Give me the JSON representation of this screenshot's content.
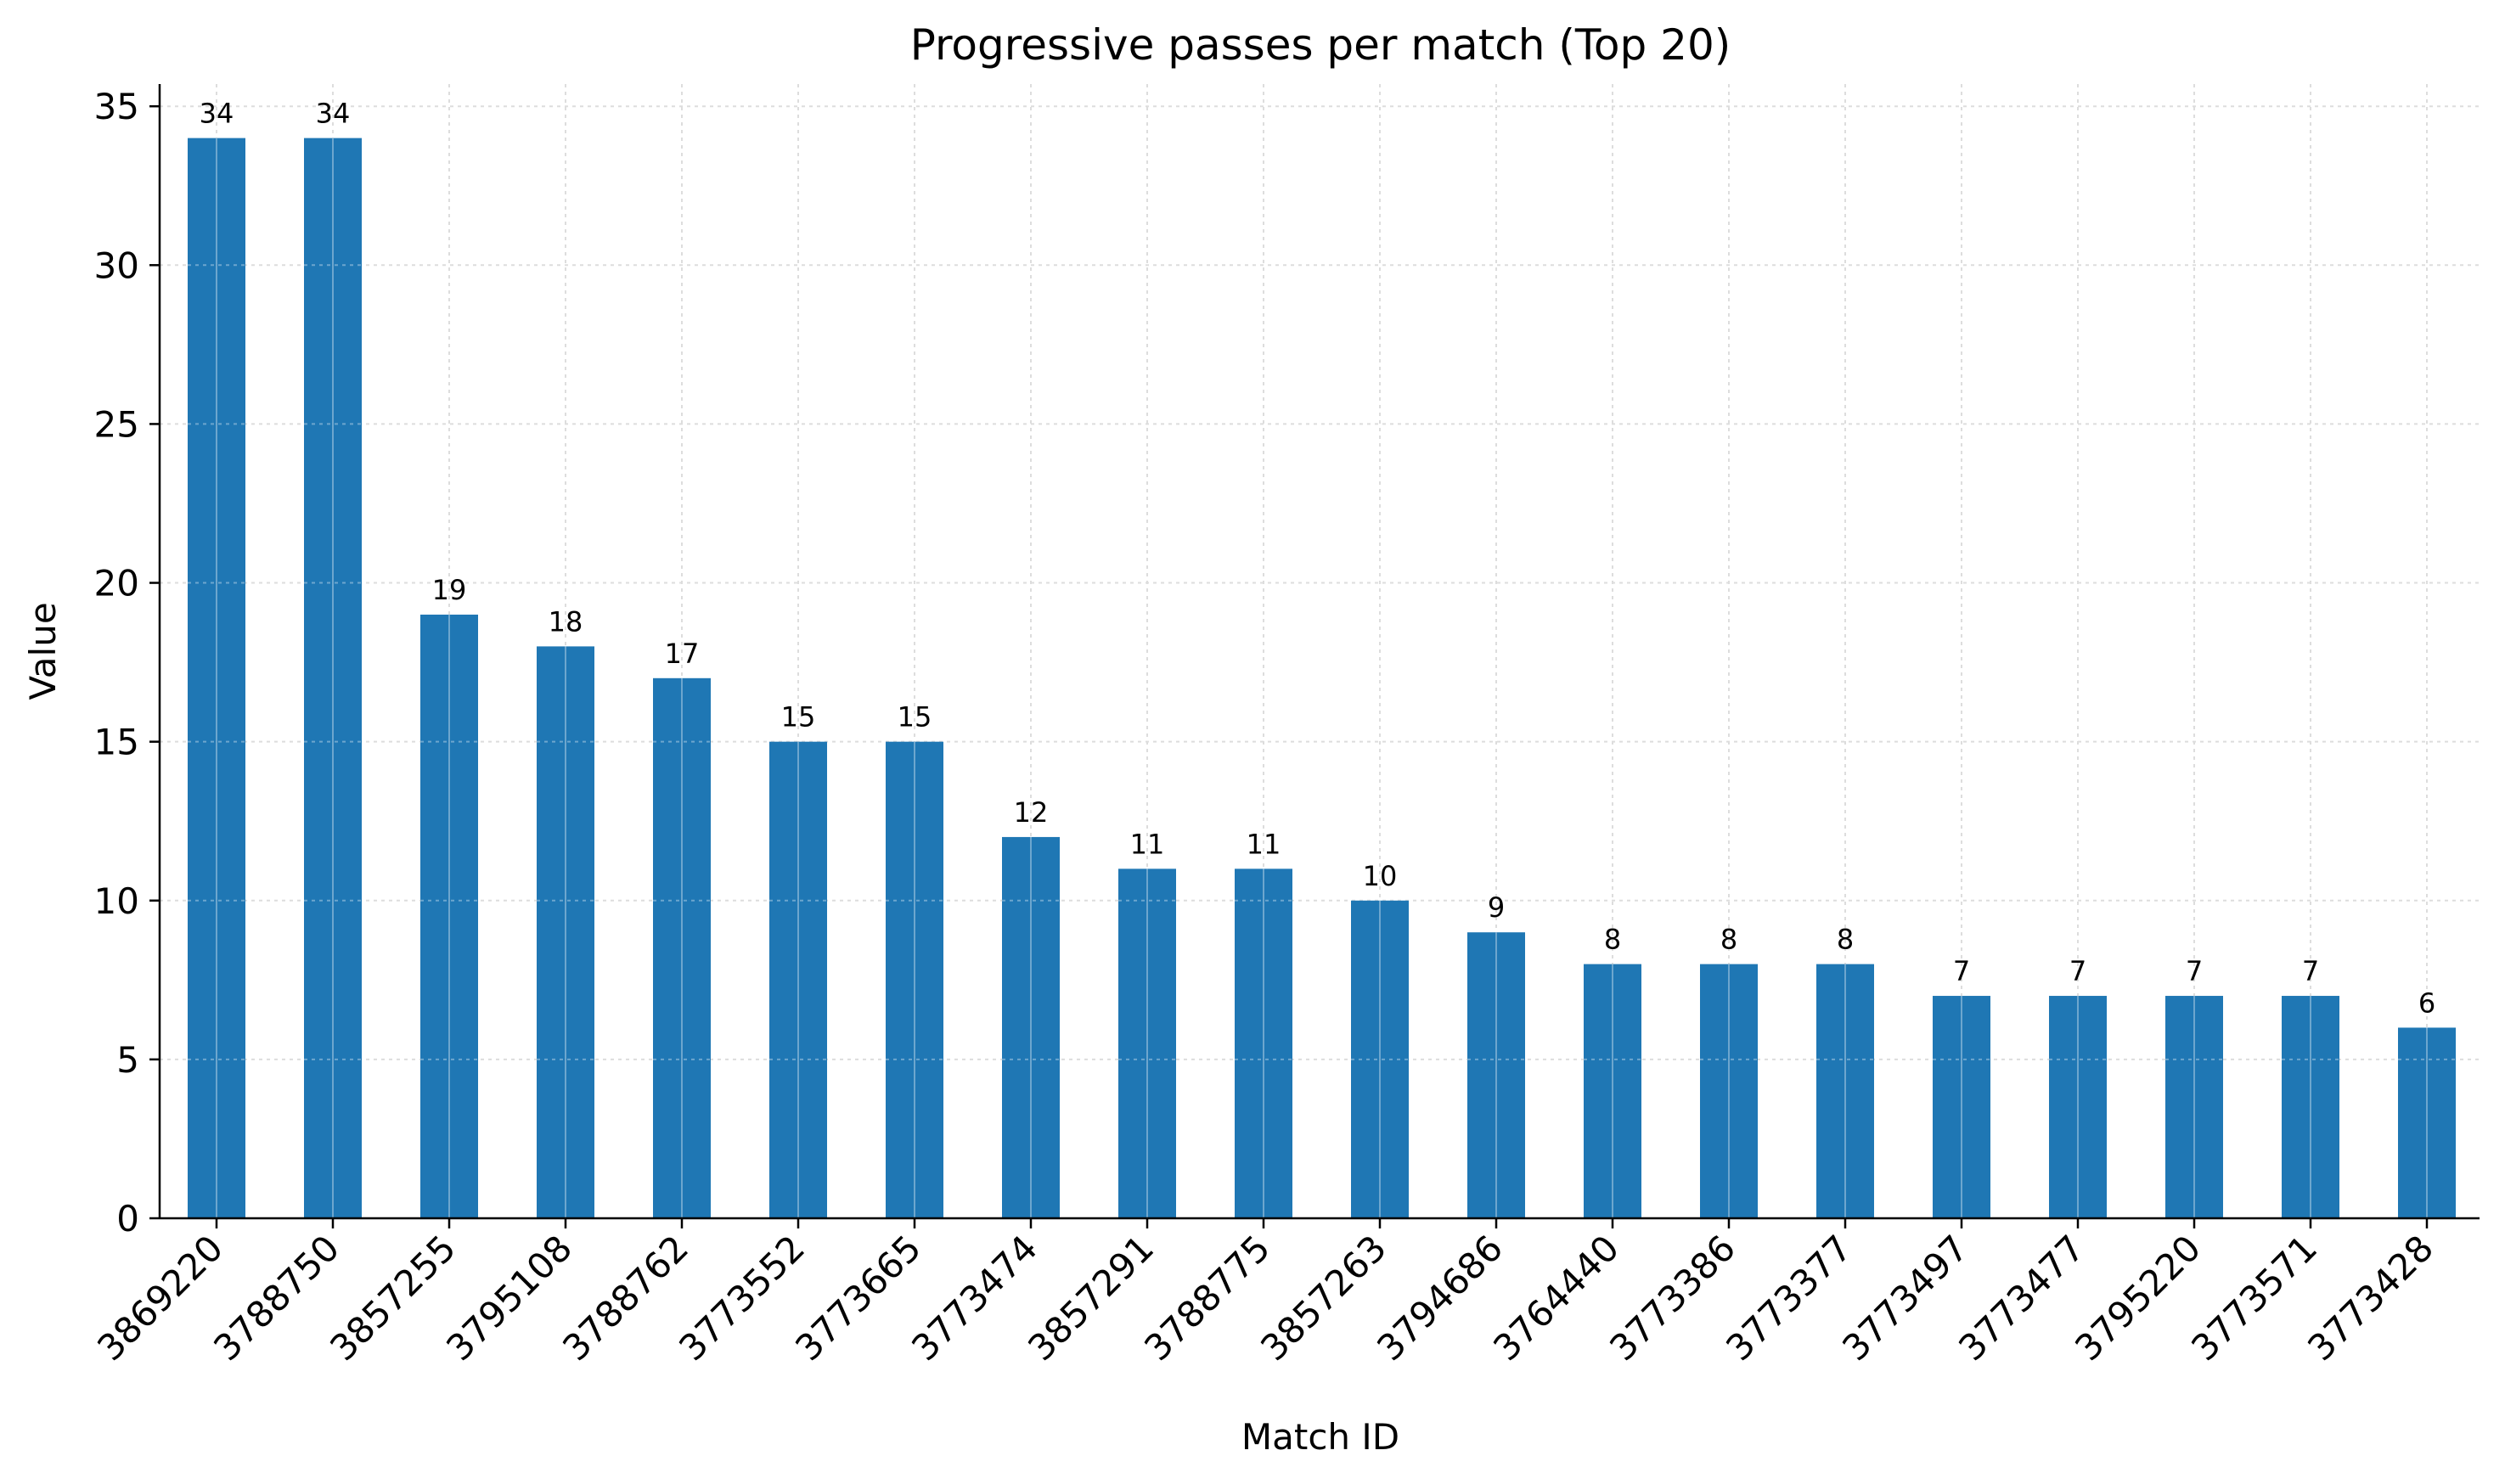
{
  "chart_data": {
    "type": "bar",
    "title": "Progressive passes per match (Top 20)",
    "xlabel": "Match ID",
    "ylabel": "Value",
    "categories": [
      "3869220",
      "3788750",
      "3857255",
      "3795108",
      "3788762",
      "3773552",
      "3773665",
      "3773474",
      "3857291",
      "3788775",
      "3857263",
      "3794686",
      "3764440",
      "3773386",
      "3773377",
      "3773497",
      "3773477",
      "3795220",
      "3773571",
      "3773428"
    ],
    "values": [
      34,
      34,
      19,
      18,
      17,
      15,
      15,
      12,
      11,
      11,
      10,
      9,
      8,
      8,
      8,
      7,
      7,
      7,
      7,
      6
    ],
    "yticks": [
      0,
      5,
      10,
      15,
      20,
      25,
      30,
      35
    ],
    "ylim": [
      0,
      35.7
    ],
    "grid": true,
    "bar_color": "#1f77b4"
  }
}
